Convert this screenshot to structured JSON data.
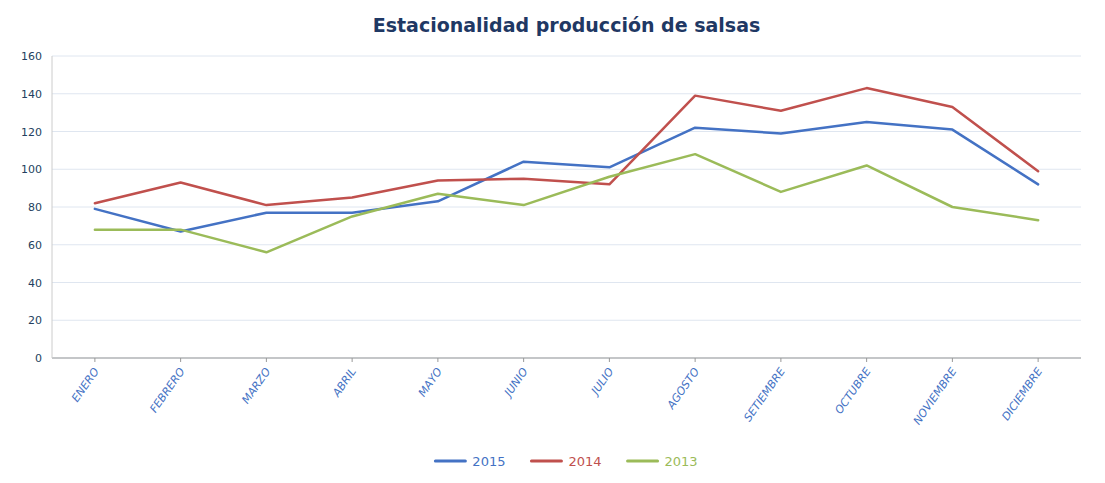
{
  "chart_data": {
    "type": "line",
    "title": "Estacionalidad producción de salsas",
    "categories": [
      "ENERO",
      "FEBRERO",
      "MARZO",
      "ABRIL",
      "MAYO",
      "JUNIO",
      "JULIO",
      "AGOSTO",
      "SETIEMBRE",
      "OCTUBRE",
      "NOVIEMBRE",
      "DICIEMBRE"
    ],
    "series": [
      {
        "name": "2015",
        "color": "#4472C4",
        "values": [
          79,
          67,
          77,
          77,
          83,
          104,
          101,
          122,
          119,
          125,
          121,
          92
        ]
      },
      {
        "name": "2014",
        "color": "#C0504D",
        "values": [
          82,
          93,
          81,
          85,
          94,
          95,
          92,
          139,
          131,
          143,
          133,
          99
        ]
      },
      {
        "name": "2013",
        "color": "#9BBB59",
        "values": [
          68,
          68,
          56,
          75,
          87,
          81,
          96,
          108,
          88,
          102,
          80,
          73
        ]
      }
    ],
    "ylim": [
      0,
      160
    ],
    "yticks": [
      0,
      20,
      40,
      60,
      80,
      100,
      120,
      140,
      160
    ],
    "grid": true,
    "legend": "bottom"
  }
}
